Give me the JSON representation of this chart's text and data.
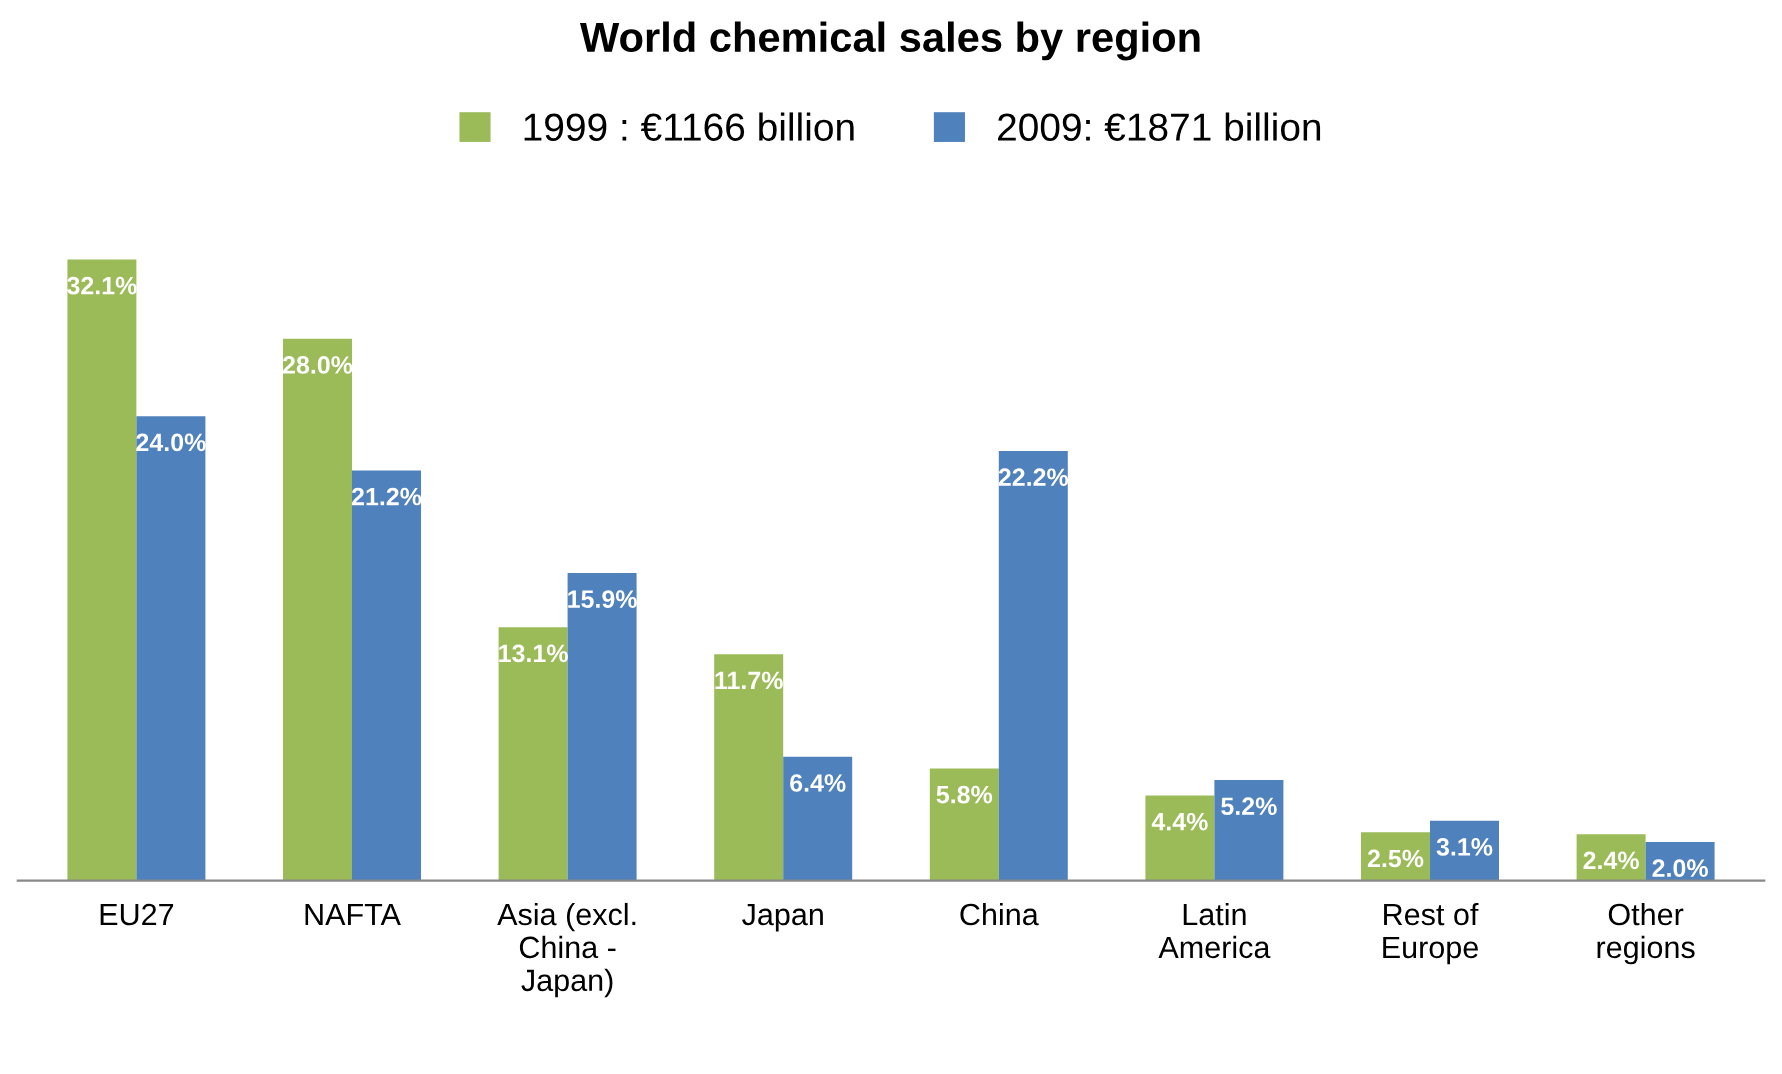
{
  "chart_data": {
    "type": "bar",
    "title": "World chemical sales by region",
    "categories": [
      "EU27",
      "NAFTA",
      "Asia (excl.\nChina -\nJapan)",
      "Japan",
      "China",
      "Latin\nAmerica",
      "Rest of\nEurope",
      "Other\nregions"
    ],
    "series": [
      {
        "name": "1999 : €1166 billion",
        "color": "#9bbb59",
        "values": [
          32.1,
          28.0,
          13.1,
          11.7,
          5.8,
          4.4,
          2.5,
          2.4
        ],
        "value_labels": [
          "32.1%",
          "28.0%",
          "13.1%",
          "11.7%",
          "5.8%",
          "4.4%",
          "2.5%",
          "2.4%"
        ]
      },
      {
        "name": "2009: €1871 billion",
        "color": "#4f81bd",
        "values": [
          24.0,
          21.2,
          15.9,
          6.4,
          22.2,
          5.2,
          3.1,
          2.0
        ],
        "value_labels": [
          "24.0%",
          "21.2%",
          "15.9%",
          "6.4%",
          "22.2%",
          "5.2%",
          "3.1%",
          "2.0%"
        ]
      }
    ],
    "legend": "top",
    "grid": false
  }
}
